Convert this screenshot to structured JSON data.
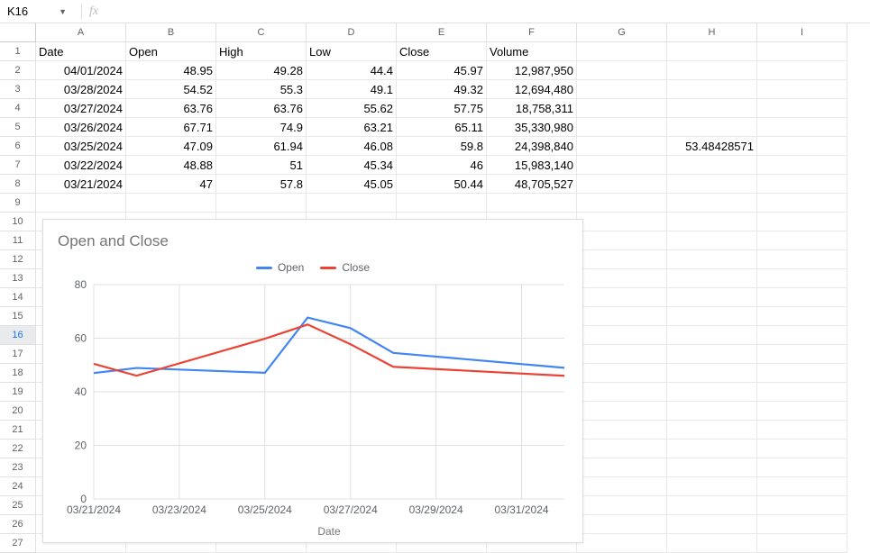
{
  "namebox": {
    "value": "K16"
  },
  "formula_bar": {
    "fx_label": "fx",
    "value": ""
  },
  "columns": [
    "A",
    "B",
    "C",
    "D",
    "E",
    "F",
    "G",
    "H",
    "I"
  ],
  "row_headers": [
    1,
    2,
    3,
    4,
    5,
    6,
    7,
    8,
    9,
    10,
    11,
    12,
    13,
    14,
    15,
    16,
    17,
    18,
    19,
    20,
    21,
    22,
    23,
    24,
    25,
    26,
    27
  ],
  "selected_row": 16,
  "table": {
    "headers": [
      "Date",
      "Open",
      "High",
      "Low",
      "Close",
      "Volume"
    ],
    "rows": [
      {
        "date": "04/01/2024",
        "open": "48.95",
        "high": "49.28",
        "low": "44.4",
        "close": "45.97",
        "volume": "12,987,950"
      },
      {
        "date": "03/28/2024",
        "open": "54.52",
        "high": "55.3",
        "low": "49.1",
        "close": "49.32",
        "volume": "12,694,480"
      },
      {
        "date": "03/27/2024",
        "open": "63.76",
        "high": "63.76",
        "low": "55.62",
        "close": "57.75",
        "volume": "18,758,311"
      },
      {
        "date": "03/26/2024",
        "open": "67.71",
        "high": "74.9",
        "low": "63.21",
        "close": "65.11",
        "volume": "35,330,980"
      },
      {
        "date": "03/25/2024",
        "open": "47.09",
        "high": "61.94",
        "low": "46.08",
        "close": "59.8",
        "volume": "24,398,840"
      },
      {
        "date": "03/22/2024",
        "open": "48.88",
        "high": "51",
        "low": "45.34",
        "close": "46",
        "volume": "15,983,140"
      },
      {
        "date": "03/21/2024",
        "open": "47",
        "high": "57.8",
        "low": "45.05",
        "close": "50.44",
        "volume": "48,705,527"
      }
    ]
  },
  "extra_cell": {
    "row": 6,
    "col": "H",
    "value": "53.48428571"
  },
  "chart": {
    "type": "line",
    "title": "Open and Close",
    "x_axis_label": "Date",
    "series": [
      {
        "name": "Open",
        "color": "#4285f4",
        "points": [
          {
            "x": "03/21/2024",
            "y": 47
          },
          {
            "x": "03/22/2024",
            "y": 48.88
          },
          {
            "x": "03/25/2024",
            "y": 47.09
          },
          {
            "x": "03/26/2024",
            "y": 67.71
          },
          {
            "x": "03/27/2024",
            "y": 63.76
          },
          {
            "x": "03/28/2024",
            "y": 54.52
          },
          {
            "x": "04/01/2024",
            "y": 48.95
          }
        ]
      },
      {
        "name": "Close",
        "color": "#ea4335",
        "points": [
          {
            "x": "03/21/2024",
            "y": 50.44
          },
          {
            "x": "03/22/2024",
            "y": 46
          },
          {
            "x": "03/25/2024",
            "y": 59.8
          },
          {
            "x": "03/26/2024",
            "y": 65.11
          },
          {
            "x": "03/27/2024",
            "y": 57.75
          },
          {
            "x": "03/28/2024",
            "y": 49.32
          },
          {
            "x": "04/01/2024",
            "y": 45.97
          }
        ]
      }
    ],
    "x_ticks": [
      "03/21/2024",
      "03/23/2024",
      "03/25/2024",
      "03/27/2024",
      "03/29/2024",
      "03/31/2024"
    ],
    "x_domain_start": "03/21/2024",
    "x_domain_end": "04/01/2024",
    "y_ticks": [
      0,
      20,
      40,
      60,
      80
    ],
    "ylim": [
      0,
      80
    ],
    "grid_color": "#e0e0e0",
    "plot_bg": "#ffffff",
    "label_fontsize": 12
  }
}
